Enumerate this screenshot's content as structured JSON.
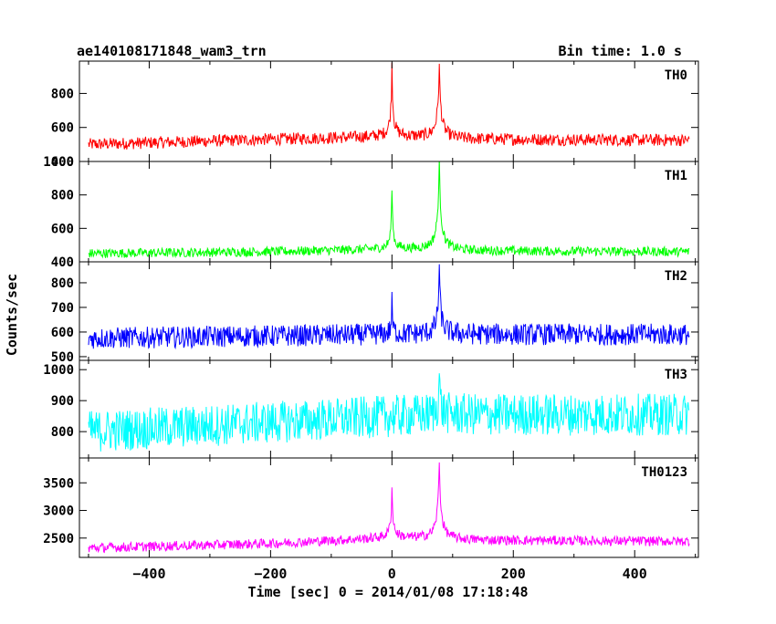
{
  "header": {
    "title": "ae140108171848_wam3_trn",
    "bin_time": "Bin time: 1.0 s"
  },
  "chart_data": {
    "type": "line",
    "xlabel": "Time [sec] 0 = 2014/01/08 17:18:48",
    "ylabel": "Counts/sec",
    "xlim": [
      -515,
      505
    ],
    "x_ticks": [
      "−400",
      "−200",
      "0",
      "200",
      "400"
    ],
    "x_tick_values": [
      -400,
      -200,
      0,
      200,
      400
    ],
    "x_range_data": [
      -500,
      490
    ],
    "panels": [
      {
        "name": "TH0",
        "color": "#ff0000",
        "ylim": [
          400,
          990
        ],
        "y_ticks": [
          400,
          600,
          800
        ],
        "y_tick_labels": [
          "400",
          "600",
          "800"
        ],
        "baseline": [
          [
            -500,
            500
          ],
          [
            -200,
            530
          ],
          [
            0,
            545
          ],
          [
            100,
            530
          ],
          [
            490,
            525
          ]
        ],
        "noise": 45,
        "peaks": [
          {
            "x": 0,
            "peak": 970,
            "width": 2.5
          },
          {
            "x": 78,
            "peak": 960,
            "width": 4
          }
        ]
      },
      {
        "name": "TH1",
        "color": "#00ff00",
        "ylim": [
          400,
          1000
        ],
        "y_ticks": [
          400,
          600,
          800,
          1000
        ],
        "y_tick_labels": [
          "400",
          "600",
          "800",
          "1000"
        ],
        "baseline": [
          [
            -500,
            450
          ],
          [
            -200,
            460
          ],
          [
            0,
            475
          ],
          [
            100,
            465
          ],
          [
            490,
            460
          ]
        ],
        "noise": 35,
        "peaks": [
          {
            "x": 0,
            "peak": 850,
            "width": 2
          },
          {
            "x": 78,
            "peak": 1000,
            "width": 4
          }
        ]
      },
      {
        "name": "TH2",
        "color": "#0000ff",
        "ylim": [
          485,
          885
        ],
        "y_ticks": [
          500,
          600,
          700,
          800
        ],
        "y_tick_labels": [
          "500",
          "600",
          "700",
          "800"
        ],
        "baseline": [
          [
            -500,
            575
          ],
          [
            0,
            590
          ],
          [
            490,
            590
          ]
        ],
        "noise": 55,
        "peaks": [
          {
            "x": 0,
            "peak": 720,
            "width": 1.5
          },
          {
            "x": 78,
            "peak": 870,
            "width": 3
          }
        ]
      },
      {
        "name": "TH3",
        "color": "#00ffff",
        "ylim": [
          715,
          1030
        ],
        "y_ticks": [
          800,
          900,
          1000
        ],
        "y_tick_labels": [
          "800",
          "900",
          "1000"
        ],
        "baseline": [
          [
            -500,
            800
          ],
          [
            -200,
            830
          ],
          [
            0,
            850
          ],
          [
            100,
            855
          ],
          [
            490,
            855
          ]
        ],
        "noise": 85,
        "peaks": [
          {
            "x": 78,
            "peak": 1000,
            "width": 2
          }
        ]
      },
      {
        "name": "TH0123",
        "color": "#ff00ff",
        "ylim": [
          2150,
          3950
        ],
        "y_ticks": [
          2500,
          3000,
          3500
        ],
        "y_tick_labels": [
          "2500",
          "3000",
          "3500"
        ],
        "baseline": [
          [
            -500,
            2320
          ],
          [
            -200,
            2400
          ],
          [
            0,
            2500
          ],
          [
            100,
            2460
          ],
          [
            490,
            2440
          ]
        ],
        "noise": 110,
        "peaks": [
          {
            "x": 0,
            "peak": 3400,
            "width": 2.5
          },
          {
            "x": 78,
            "peak": 3900,
            "width": 4
          }
        ]
      }
    ]
  }
}
